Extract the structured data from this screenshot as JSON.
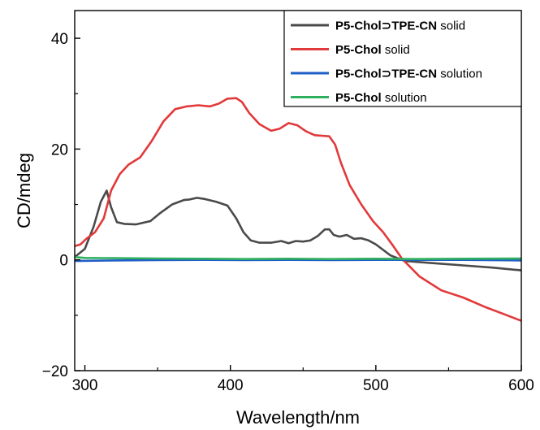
{
  "chart_data": {
    "type": "line",
    "xlabel": "Wavelength/nm",
    "ylabel": "CD/mdeg",
    "xlim": [
      293,
      600
    ],
    "ylim": [
      -20,
      45
    ],
    "xticks": [
      300,
      400,
      500,
      600
    ],
    "yticks": [
      -20,
      0,
      20,
      40
    ],
    "grid": false,
    "legend_position": "top-right",
    "series": [
      {
        "name_bold": "P5-Chol⊃TPE-CN",
        "name_suffix": " solid",
        "color": "#4a4a4a",
        "x": [
          293,
          300,
          306,
          311,
          315,
          318,
          322,
          327,
          335,
          345,
          352,
          360,
          368,
          372,
          377,
          382,
          390,
          398,
          404,
          409,
          414,
          420,
          428,
          435,
          440,
          445,
          450,
          455,
          460,
          465,
          468,
          471,
          475,
          480,
          485,
          490,
          495,
          500,
          505,
          510,
          520,
          540,
          560,
          580,
          600
        ],
        "y": [
          0.5,
          2,
          6,
          10.5,
          12.5,
          9.5,
          6.8,
          6.5,
          6.4,
          7,
          8.5,
          10,
          10.8,
          10.9,
          11.2,
          11,
          10.5,
          9.8,
          7.5,
          5,
          3.5,
          3.1,
          3.1,
          3.4,
          3,
          3.4,
          3.3,
          3.5,
          4.3,
          5.5,
          5.5,
          4.5,
          4.2,
          4.5,
          3.8,
          3.9,
          3.5,
          2.8,
          1.8,
          0.8,
          -0.2,
          -0.6,
          -1,
          -1.4,
          -1.9
        ]
      },
      {
        "name_bold": "P5-Chol",
        "name_suffix": " solid",
        "color": "#e2393a",
        "x": [
          293,
          297,
          301,
          307,
          313,
          318,
          324,
          330,
          338,
          346,
          354,
          362,
          370,
          378,
          386,
          392,
          398,
          404,
          408,
          413,
          420,
          428,
          434,
          440,
          446,
          452,
          458,
          463,
          468,
          472,
          476,
          482,
          490,
          498,
          505,
          512,
          518,
          530,
          545,
          560,
          575,
          590,
          600
        ],
        "y": [
          2.5,
          2.8,
          3.8,
          5,
          7.5,
          12.5,
          15.5,
          17.2,
          18.5,
          21.5,
          25,
          27.2,
          27.7,
          27.9,
          27.7,
          28.2,
          29.1,
          29.2,
          28.5,
          26.5,
          24.5,
          23.3,
          23.7,
          24.7,
          24.3,
          23.2,
          22.5,
          22.4,
          22.3,
          20.8,
          17.5,
          13.5,
          10,
          7,
          5,
          2.5,
          0.2,
          -3,
          -5.5,
          -6.8,
          -8.5,
          -10,
          -11
        ]
      },
      {
        "name_bold": "P5-Chol⊃TPE-CN",
        "name_suffix": " solution",
        "color": "#1f5fc6",
        "x": [
          293,
          320,
          350,
          380,
          410,
          440,
          470,
          500,
          530,
          560,
          600
        ],
        "y": [
          -0.2,
          -0.1,
          -0.05,
          0,
          -0.05,
          0,
          -0.05,
          0,
          0,
          0,
          -0.1
        ]
      },
      {
        "name_bold": "P5-Chol",
        "name_suffix": " solution",
        "color": "#2fb05e",
        "x": [
          293,
          300,
          320,
          350,
          380,
          410,
          440,
          470,
          500,
          530,
          560,
          600
        ],
        "y": [
          0.5,
          0.35,
          0.3,
          0.25,
          0.2,
          0.15,
          0.2,
          0.15,
          0.2,
          0.15,
          0.2,
          0.25
        ]
      }
    ]
  }
}
